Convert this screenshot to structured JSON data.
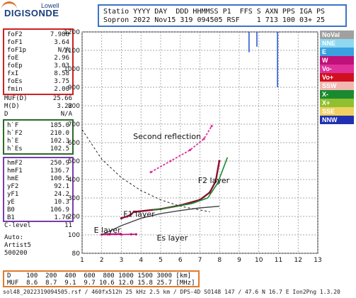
{
  "logo": {
    "small": "Lowell",
    "big": "DIGISONDE"
  },
  "header": {
    "line1": "Statio YYYY DAY  DDD HHMMSS P1  FFS S AXN PPS IGA PS",
    "line2": "Sopron 2022 Nov15 319 094505 RSF    1 713 100 03+ 25"
  },
  "params_red": [
    {
      "k": "foF2",
      "v": "7.988"
    },
    {
      "k": "foF1",
      "v": "3.64"
    },
    {
      "k": "foF1p",
      "v": "N/A"
    },
    {
      "k": "foE",
      "v": "2.96"
    },
    {
      "k": "foEp",
      "v": "3.03"
    },
    {
      "k": "fxI",
      "v": "8.58"
    },
    {
      "k": "foEs",
      "v": "3.75"
    },
    {
      "k": "fmin",
      "v": "2.00"
    }
  ],
  "params_muf": [
    {
      "k": "MUF(D)",
      "v": "25.66"
    },
    {
      "k": "M(D)",
      "v": "3.22"
    },
    {
      "k": "D",
      "v": "N/A"
    }
  ],
  "params_green": [
    {
      "k": "h`F",
      "v": "185.0"
    },
    {
      "k": "h`F2",
      "v": "210.0"
    },
    {
      "k": "h`E",
      "v": "102.3"
    },
    {
      "k": "h`Es",
      "v": "102.5"
    }
  ],
  "params_purple": [
    {
      "k": "hmF2",
      "v": "250.9"
    },
    {
      "k": "hmF1",
      "v": "136.7"
    },
    {
      "k": "hmE",
      "v": "100.5"
    },
    {
      "k": "yF2",
      "v": "92.1"
    },
    {
      "k": "yF1",
      "v": "24.2"
    },
    {
      "k": "yE",
      "v": "10.3"
    },
    {
      "k": "B0",
      "v": "106.9"
    },
    {
      "k": "B1",
      "v": "1.76"
    }
  ],
  "clevel": {
    "k": "C-level",
    "v": "11"
  },
  "auto": [
    "Auto:",
    "Artist5",
    "500200"
  ],
  "legend": [
    {
      "label": "NoVal",
      "color": "#a0a0a0"
    },
    {
      "label": "NNE",
      "color": "#8fd8f0"
    },
    {
      "label": "E",
      "color": "#3aa0e0"
    },
    {
      "label": "W",
      "color": "#c0107a"
    },
    {
      "label": "Vo-",
      "color": "#e0309a"
    },
    {
      "label": "Vo+",
      "color": "#d01020"
    },
    {
      "label": "SSW",
      "color": "#f0b8b0"
    },
    {
      "label": "X-",
      "color": "#1a8a30"
    },
    {
      "label": "X+",
      "color": "#90c030"
    },
    {
      "label": "SSE",
      "color": "#f0d060"
    },
    {
      "label": "NNW",
      "color": "#2030b0"
    }
  ],
  "chart_data": {
    "type": "scatter",
    "xlim": [
      1,
      9
    ],
    "ylim": [
      80,
      1200
    ],
    "x_ticks": [
      "1",
      "2",
      "3",
      "4",
      "5",
      "6",
      "7",
      "8",
      "9",
      "10",
      "11",
      "12",
      "13"
    ],
    "y_ticks": [
      "80",
      "100",
      "200",
      "300",
      "400",
      "500",
      "600",
      "700",
      "800",
      "900",
      "1000",
      "1100",
      "1200"
    ],
    "grid": true,
    "annotations": [
      "Second reflection",
      "F2 layer",
      "F1 layer",
      "E layer",
      "Es layer"
    ],
    "series": [
      {
        "name": "E layer",
        "points": [
          [
            2.0,
            102
          ],
          [
            2.4,
            103
          ],
          [
            2.7,
            104
          ],
          [
            2.96,
            105
          ]
        ]
      },
      {
        "name": "Es layer",
        "points": [
          [
            2.3,
            103
          ],
          [
            3.0,
            102
          ],
          [
            3.5,
            103
          ],
          [
            3.75,
            103
          ]
        ]
      },
      {
        "name": "F1 layer",
        "points": [
          [
            3.0,
            190
          ],
          [
            3.3,
            200
          ],
          [
            3.5,
            212
          ],
          [
            3.64,
            225
          ]
        ]
      },
      {
        "name": "F2 layer",
        "points": [
          [
            3.7,
            225
          ],
          [
            5.0,
            240
          ],
          [
            6.0,
            260
          ],
          [
            7.0,
            290
          ],
          [
            7.5,
            330
          ],
          [
            7.8,
            390
          ],
          [
            7.988,
            500
          ]
        ]
      },
      {
        "name": "Second reflection",
        "points": [
          [
            4.5,
            440
          ],
          [
            5.5,
            500
          ],
          [
            6.5,
            560
          ],
          [
            7.2,
            620
          ],
          [
            7.6,
            690
          ]
        ]
      }
    ]
  },
  "footer": {
    "row1": "D    100  200  400  600  800 1000 1500 3000 [km]",
    "row2": "MUF  8.6  8.7  9.1  9.7 10.6 12.0 15.8 25.7 [MHz]"
  },
  "bottom_line": "sol48_2022319094505.rsf / 460fx512h 25 kHz 2.5 km / DPS-4D SO148 147 / 47.6 N 16.7 E Ion2Png 1.3.20"
}
